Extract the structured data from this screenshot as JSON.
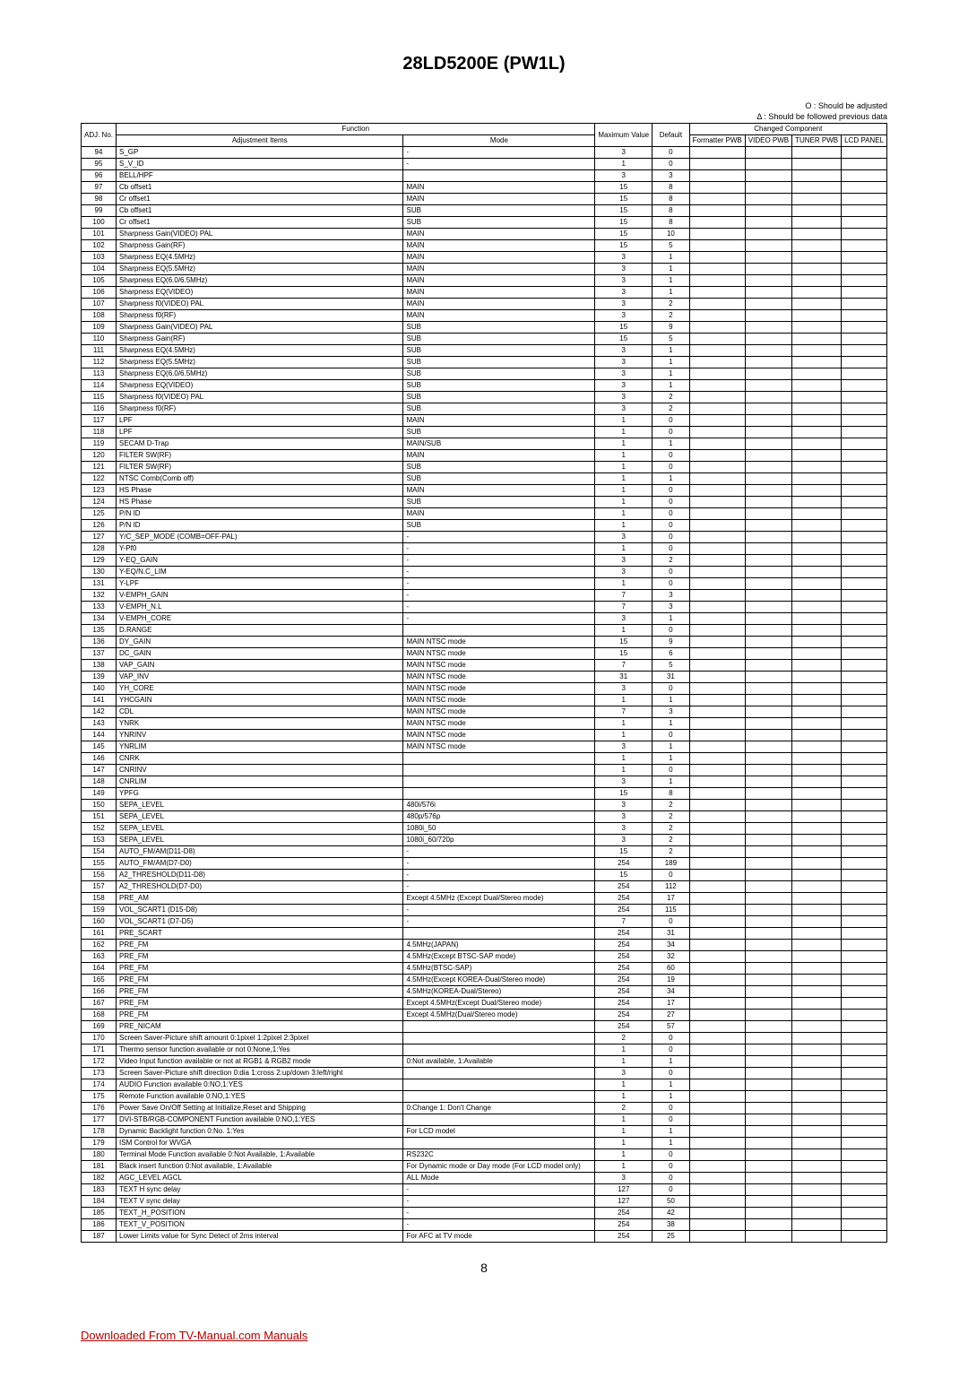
{
  "title": "28LD5200E (PW1L)",
  "legend1": "O : Should be adjusted",
  "legend2": "Δ : Should be followed previous data",
  "headers": {
    "adj_no": "ADJ.\nNo.",
    "function": "Function",
    "adj_items": "Adjustment Items",
    "mode": "Mode",
    "max_value": "Maximum\nValue",
    "default": "Default",
    "changed": "Changed Component",
    "formatter": "Formatter\nPWB",
    "video": "VIDEO\nPWB",
    "tuner": "TUNER\nPWB",
    "lcd": "LCD\nPANEL"
  },
  "rows": [
    {
      "n": "94",
      "i": "S_GP",
      "m": "-",
      "mx": "3",
      "d": "0"
    },
    {
      "n": "95",
      "i": "S_V_ID",
      "m": "-",
      "mx": "1",
      "d": "0"
    },
    {
      "n": "96",
      "i": "BELL/HPF",
      "m": "",
      "mx": "3",
      "d": "3"
    },
    {
      "n": "97",
      "i": "Cb offset1",
      "m": "MAIN",
      "mx": "15",
      "d": "8"
    },
    {
      "n": "98",
      "i": "Cr offset1",
      "m": "MAIN",
      "mx": "15",
      "d": "8"
    },
    {
      "n": "99",
      "i": "Cb offset1",
      "m": "SUB",
      "mx": "15",
      "d": "8"
    },
    {
      "n": "100",
      "i": "Cr offset1",
      "m": "SUB",
      "mx": "15",
      "d": "8"
    },
    {
      "n": "101",
      "i": "Sharpness Gain(VIDEO) PAL",
      "m": "MAIN",
      "mx": "15",
      "d": "10"
    },
    {
      "n": "102",
      "i": "Sharpness Gain(RF)",
      "m": "MAIN",
      "mx": "15",
      "d": "5"
    },
    {
      "n": "103",
      "i": "Sharpness EQ(4.5MHz)",
      "m": "MAIN",
      "mx": "3",
      "d": "1"
    },
    {
      "n": "104",
      "i": "Sharpness EQ(5.5MHz)",
      "m": "MAIN",
      "mx": "3",
      "d": "1"
    },
    {
      "n": "105",
      "i": "Sharpness EQ(6.0/6.5MHz)",
      "m": "MAIN",
      "mx": "3",
      "d": "1"
    },
    {
      "n": "106",
      "i": "Sharpness EQ(VIDEO)",
      "m": "MAIN",
      "mx": "3",
      "d": "1"
    },
    {
      "n": "107",
      "i": "Sharpness f0(VIDEO) PAL",
      "m": "MAIN",
      "mx": "3",
      "d": "2"
    },
    {
      "n": "108",
      "i": "Sharpness f0(RF)",
      "m": "MAIN",
      "mx": "3",
      "d": "2"
    },
    {
      "n": "109",
      "i": "Sharpness Gain(VIDEO) PAL",
      "m": "SUB",
      "mx": "15",
      "d": "9"
    },
    {
      "n": "110",
      "i": "Sharpness Gain(RF)",
      "m": "SUB",
      "mx": "15",
      "d": "5"
    },
    {
      "n": "111",
      "i": "Sharpness EQ(4.5MHz)",
      "m": "SUB",
      "mx": "3",
      "d": "1"
    },
    {
      "n": "112",
      "i": "Sharpness EQ(5.5MHz)",
      "m": "SUB",
      "mx": "3",
      "d": "1"
    },
    {
      "n": "113",
      "i": "Sharpness EQ(6.0/6.5MHz)",
      "m": "SUB",
      "mx": "3",
      "d": "1"
    },
    {
      "n": "114",
      "i": "Sharpness EQ(VIDEO)",
      "m": "SUB",
      "mx": "3",
      "d": "1"
    },
    {
      "n": "115",
      "i": "Sharpness f0(VIDEO) PAL",
      "m": "SUB",
      "mx": "3",
      "d": "2"
    },
    {
      "n": "116",
      "i": "Sharpness f0(RF)",
      "m": "SUB",
      "mx": "3",
      "d": "2"
    },
    {
      "n": "117",
      "i": "LPF",
      "m": "MAIN",
      "mx": "1",
      "d": "0"
    },
    {
      "n": "118",
      "i": "LPF",
      "m": "SUB",
      "mx": "1",
      "d": "0"
    },
    {
      "n": "119",
      "i": "SECAM D-Trap",
      "m": "MAIN/SUB",
      "mx": "1",
      "d": "1"
    },
    {
      "n": "120",
      "i": "FILTER SW(RF)",
      "m": "MAIN",
      "mx": "1",
      "d": "0"
    },
    {
      "n": "121",
      "i": "FILTER SW(RF)",
      "m": "SUB",
      "mx": "1",
      "d": "0"
    },
    {
      "n": "122",
      "i": "NTSC Comb(Comb off)",
      "m": "SUB",
      "mx": "1",
      "d": "1"
    },
    {
      "n": "123",
      "i": "HS Phase",
      "m": "MAIN",
      "mx": "1",
      "d": "0"
    },
    {
      "n": "124",
      "i": "HS Phase",
      "m": "SUB",
      "mx": "1",
      "d": "0"
    },
    {
      "n": "125",
      "i": "P/N ID",
      "m": "MAIN",
      "mx": "1",
      "d": "0"
    },
    {
      "n": "126",
      "i": "P/N ID",
      "m": "SUB",
      "mx": "1",
      "d": "0"
    },
    {
      "n": "127",
      "i": "Y/C_SEP_MODE (COMB=OFF-PAL)",
      "m": "-",
      "mx": "3",
      "d": "0"
    },
    {
      "n": "128",
      "i": "Y-Pf0",
      "m": "-",
      "mx": "1",
      "d": "0"
    },
    {
      "n": "129",
      "i": "Y-EQ_GAIN",
      "m": "-",
      "mx": "3",
      "d": "2"
    },
    {
      "n": "130",
      "i": "Y-EQ/N.C_LIM",
      "m": "-",
      "mx": "3",
      "d": "0"
    },
    {
      "n": "131",
      "i": "Y-LPF",
      "m": "-",
      "mx": "1",
      "d": "0"
    },
    {
      "n": "132",
      "i": "V-EMPH_GAIN",
      "m": "-",
      "mx": "7",
      "d": "3"
    },
    {
      "n": "133",
      "i": "V-EMPH_N.L",
      "m": "-",
      "mx": "7",
      "d": "3"
    },
    {
      "n": "134",
      "i": "V-EMPH_CORE",
      "m": "-",
      "mx": "3",
      "d": "1"
    },
    {
      "n": "135",
      "i": "D.RANGE",
      "m": "",
      "mx": "1",
      "d": "0"
    },
    {
      "n": "136",
      "i": "DY_GAIN",
      "m": "MAIN NTSC mode",
      "mx": "15",
      "d": "9"
    },
    {
      "n": "137",
      "i": "DC_GAIN",
      "m": "MAIN NTSC mode",
      "mx": "15",
      "d": "6"
    },
    {
      "n": "138",
      "i": "VAP_GAIN",
      "m": "MAIN NTSC mode",
      "mx": "7",
      "d": "5"
    },
    {
      "n": "139",
      "i": "VAP_INV",
      "m": "MAIN NTSC mode",
      "mx": "31",
      "d": "31"
    },
    {
      "n": "140",
      "i": "YH_CORE",
      "m": "MAIN NTSC mode",
      "mx": "3",
      "d": "0"
    },
    {
      "n": "141",
      "i": "YHCGAIN",
      "m": "MAIN NTSC mode",
      "mx": "1",
      "d": "1"
    },
    {
      "n": "142",
      "i": "CDL",
      "m": "MAIN NTSC mode",
      "mx": "7",
      "d": "3"
    },
    {
      "n": "143",
      "i": "YNRK",
      "m": "MAIN NTSC mode",
      "mx": "1",
      "d": "1"
    },
    {
      "n": "144",
      "i": "YNRINV",
      "m": "MAIN NTSC mode",
      "mx": "1",
      "d": "0"
    },
    {
      "n": "145",
      "i": "YNRLIM",
      "m": "MAIN NTSC mode",
      "mx": "3",
      "d": "1"
    },
    {
      "n": "146",
      "i": "CNRK",
      "m": "",
      "mx": "1",
      "d": "1"
    },
    {
      "n": "147",
      "i": "CNRINV",
      "m": "",
      "mx": "1",
      "d": "0"
    },
    {
      "n": "148",
      "i": "CNRLIM",
      "m": "",
      "mx": "3",
      "d": "1"
    },
    {
      "n": "149",
      "i": "YPFG",
      "m": "",
      "mx": "15",
      "d": "8"
    },
    {
      "n": "150",
      "i": "SEPA_LEVEL",
      "m": "480i/576i",
      "mx": "3",
      "d": "2"
    },
    {
      "n": "151",
      "i": "SEPA_LEVEL",
      "m": "480p/576p",
      "mx": "3",
      "d": "2"
    },
    {
      "n": "152",
      "i": "SEPA_LEVEL",
      "m": "1080i_50",
      "mx": "3",
      "d": "2"
    },
    {
      "n": "153",
      "i": "SEPA_LEVEL",
      "m": "1080i_60/720p",
      "mx": "3",
      "d": "2"
    },
    {
      "n": "154",
      "i": "AUTO_FM/AM(D11-D8)",
      "m": "-",
      "mx": "15",
      "d": "2"
    },
    {
      "n": "155",
      "i": "AUTO_FM/AM(D7-D0)",
      "m": "-",
      "mx": "254",
      "d": "189"
    },
    {
      "n": "156",
      "i": "A2_THRESHOLD(D11-D8)",
      "m": "-",
      "mx": "15",
      "d": "0"
    },
    {
      "n": "157",
      "i": "A2_THRESHOLD(D7-D0)",
      "m": "-",
      "mx": "254",
      "d": "112"
    },
    {
      "n": "158",
      "i": "PRE_AM",
      "m": "Except 4.5MHz (Except Dual/Stereo mode)",
      "mx": "254",
      "d": "17"
    },
    {
      "n": "159",
      "i": "VOL_SCART1 (D15-D8)",
      "m": "-",
      "mx": "254",
      "d": "115"
    },
    {
      "n": "160",
      "i": "VOL_SCART1 (D7-D5)",
      "m": "-",
      "mx": "7",
      "d": "0"
    },
    {
      "n": "161",
      "i": "PRE_SCART",
      "m": "",
      "mx": "254",
      "d": "31"
    },
    {
      "n": "162",
      "i": "PRE_FM",
      "m": "4.5MHz(JAPAN)",
      "mx": "254",
      "d": "34"
    },
    {
      "n": "163",
      "i": "PRE_FM",
      "m": "4.5MHz(Except BTSC-SAP mode)",
      "mx": "254",
      "d": "32"
    },
    {
      "n": "164",
      "i": "PRE_FM",
      "m": "4.5MHz(BTSC-SAP)",
      "mx": "254",
      "d": "60"
    },
    {
      "n": "165",
      "i": "PRE_FM",
      "m": "4.5MHz(Except KOREA-Dual/Stereo mode)",
      "mx": "254",
      "d": "19"
    },
    {
      "n": "166",
      "i": "PRE_FM",
      "m": "4.5MHz(KOREA-Dual/Stereo)",
      "mx": "254",
      "d": "34"
    },
    {
      "n": "167",
      "i": "PRE_FM",
      "m": "Except 4.5MHz(Except Dual/Stereo mode)",
      "mx": "254",
      "d": "17"
    },
    {
      "n": "168",
      "i": "PRE_FM",
      "m": "Except 4.5MHz(Dual/Stereo mode)",
      "mx": "254",
      "d": "27"
    },
    {
      "n": "169",
      "i": "PRE_NICAM",
      "m": "",
      "mx": "254",
      "d": "57"
    },
    {
      "n": "170",
      "i": "Screen Saver-Picture shift amount 0:1pixel 1:2pixel 2:3pixel",
      "m": "",
      "mx": "2",
      "d": "0"
    },
    {
      "n": "171",
      "i": "Thermo sensor function available or not 0:None,1:Yes",
      "m": "",
      "mx": "1",
      "d": "0"
    },
    {
      "n": "172",
      "i": "Video Input function available or not at RGB1 & RGB2 mode",
      "m": "0:Not available, 1:Available",
      "mx": "1",
      "d": "1"
    },
    {
      "n": "173",
      "i": "Screen Saver-Picture shift direction 0:dia 1:cross 2:up/down 3:left/right",
      "m": "",
      "mx": "3",
      "d": "0"
    },
    {
      "n": "174",
      "i": "AUDIO Function available 0:NO,1:YES",
      "m": "",
      "mx": "1",
      "d": "1"
    },
    {
      "n": "175",
      "i": "Remote Function available 0:NO,1:YES",
      "m": "",
      "mx": "1",
      "d": "1"
    },
    {
      "n": "176",
      "i": "Power Save On/Off Setting at Initialize,Reset and Shipping",
      "m": "0:Change 1: Don't Change",
      "mx": "2",
      "d": "0"
    },
    {
      "n": "177",
      "i": "DVI-STB/RGB-COMPONENT Function available 0:NO,1:YES",
      "m": "",
      "mx": "1",
      "d": "0"
    },
    {
      "n": "178",
      "i": "Dynamic Backlight function 0:No. 1:Yes",
      "m": "For LCD model",
      "mx": "1",
      "d": "1"
    },
    {
      "n": "179",
      "i": "ISM Control for WVGA",
      "m": "",
      "mx": "1",
      "d": "1"
    },
    {
      "n": "180",
      "i": "Terminal Mode Function available 0:Not Available, 1:Available",
      "m": "RS232C",
      "mx": "1",
      "d": "0"
    },
    {
      "n": "181",
      "i": "Black insert function 0:Not available, 1:Available",
      "m": "For Dynamic mode or Day mode (For LCD model only)",
      "mx": "1",
      "d": "0"
    },
    {
      "n": "182",
      "i": "AGC_LEVEL AGCL",
      "m": "ALL Mode",
      "mx": "3",
      "d": "0"
    },
    {
      "n": "183",
      "i": "TEXT H sync delay",
      "m": "-",
      "mx": "127",
      "d": "0"
    },
    {
      "n": "184",
      "i": "TEXT V sync delay",
      "m": "-",
      "mx": "127",
      "d": "50"
    },
    {
      "n": "185",
      "i": "TEXT_H_POSITION",
      "m": "-",
      "mx": "254",
      "d": "42"
    },
    {
      "n": "186",
      "i": "TEXT_V_POSITION",
      "m": "-",
      "mx": "254",
      "d": "38"
    },
    {
      "n": "187",
      "i": "Lower Limits value for Sync Detect of 2ms interval",
      "m": "For AFC at TV mode",
      "mx": "254",
      "d": "25"
    }
  ],
  "page_number": "8",
  "footer": "Downloaded From TV-Manual.com Manuals"
}
